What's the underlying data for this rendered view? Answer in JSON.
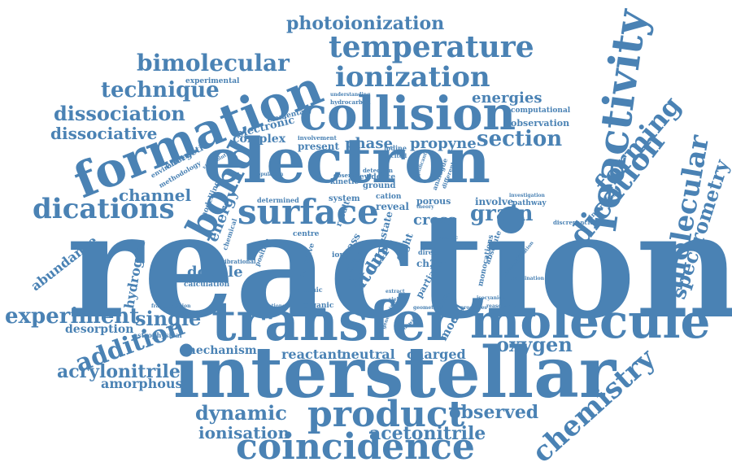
{
  "theme": {
    "word_color": "#4a82b4",
    "background": "#ffffff"
  },
  "words": [
    "reaction",
    "interstellar",
    "electron",
    "transfer",
    "collision",
    "formation",
    "molecule",
    "reactivity",
    "coincidence",
    "product",
    "surface",
    "bond",
    "temperature",
    "ionization",
    "dications",
    "dication",
    "molecular",
    "spectrometry",
    "chemistry",
    "bimolecular",
    "technique",
    "dissociation",
    "dissociative",
    "photoionization",
    "forming",
    "experiment",
    "addition",
    "single",
    "dynamic",
    "ionisation",
    "acetonitrile",
    "observed",
    "oxygen",
    "acrylonitrile",
    "amorphous",
    "mechanism",
    "reactant",
    "neutral",
    "charged",
    "channel",
    "section",
    "propyne",
    "phase",
    "energies",
    "cross",
    "grain",
    "double",
    "hydrogen",
    "abundance",
    "desorption",
    "complex",
    "electronic",
    "energy",
    "atom",
    "dust",
    "model",
    "calculation",
    "energetic",
    "experimental",
    "computational",
    "observation",
    "elementary",
    "understanding",
    "hydrocarbon",
    "involvement",
    "present",
    "detection",
    "evidence",
    "ground",
    "observe",
    "kinetic",
    "determined",
    "system",
    "cation",
    "reveal",
    "porous",
    "involve",
    "pathway",
    "interaction",
    "ch2cn",
    "direct",
    "partial",
    "monocations",
    "absolute",
    "astrophysical",
    "organic",
    "position",
    "mass",
    "time",
    "flight",
    "state",
    "sensitive",
    "vibrational",
    "centre",
    "atomic",
    "theory",
    "iodine",
    "excited",
    "significant",
    "analogue",
    "different",
    "methodology",
    "environment",
    "chemical",
    "result",
    "ion",
    "data",
    "fragmentation",
    "trications",
    "processes",
    "modelling",
    "viewpoint",
    "discrepancies",
    "investigation",
    "specific",
    "characteristic",
    "complication",
    "coordination",
    "isocyanide",
    "extract",
    "reasonably",
    "generating",
    "geometries",
    "yield",
    "following",
    "account",
    "population"
  ]
}
